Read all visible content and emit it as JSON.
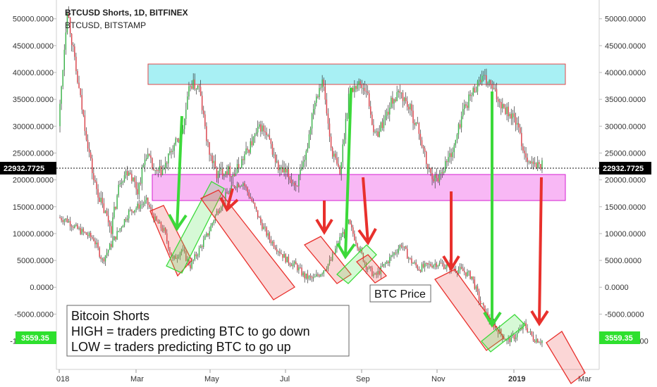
{
  "header": {
    "title": "BTCUSD Shorts, 1D, BITFINEX",
    "subtitle": "BTCUSD, BITSTAMP"
  },
  "colors": {
    "up": "#3bb34a",
    "down": "#d9434b",
    "resistance_zone": "#a8f0f4",
    "support_zone": "#f8b8f5",
    "arrow_red": "#e8302c",
    "arrow_green": "#3cd93a",
    "current_tag": "#000000",
    "shorts_tag": "#2ee02e"
  },
  "chart_data": {
    "type": "candlestick",
    "title": "BTCUSD Shorts, 1D, BITFINEX",
    "series": [
      {
        "name": "BTCUSD Shorts, 1D, BITFINEX"
      },
      {
        "name": "BTCUSD, BITSTAMP"
      }
    ],
    "y_ticks": [
      50000,
      45000,
      40000,
      35000,
      30000,
      25000,
      20000,
      15000,
      10000,
      5000,
      0,
      -5000,
      -10000
    ],
    "y_tick_labels": [
      "50000.0000",
      "45000.0000",
      "40000.0000",
      "35000.0000",
      "30000.0000",
      "25000.0000",
      "20000.0000",
      "15000.0000",
      "10000.0000",
      "5000.0000",
      "0.0000",
      "-5000.0000",
      "-10000.0000"
    ],
    "ylim": [
      -15300,
      53500
    ],
    "x_ticks": [
      "018",
      "Mar",
      "May",
      "Jul",
      "Sep",
      "Nov",
      "2019",
      "Mar"
    ],
    "current_value_label": "22932.7725",
    "current_value": 22932.7725,
    "shorts_value_label": "3559.35",
    "shorts_value_plotted": -9800,
    "price_path": [
      [
        0,
        30000
      ],
      [
        1,
        52000
      ],
      [
        2,
        40000
      ],
      [
        3,
        30000
      ],
      [
        4,
        20000
      ],
      [
        5,
        15000
      ],
      [
        6,
        11000
      ],
      [
        7,
        20000
      ],
      [
        8,
        22000
      ],
      [
        9,
        18000
      ],
      [
        10,
        25000
      ],
      [
        11,
        21000
      ],
      [
        12,
        22000
      ],
      [
        13,
        26000
      ],
      [
        14,
        28000
      ],
      [
        15,
        38000
      ],
      [
        16,
        37000
      ],
      [
        17,
        26000
      ],
      [
        18,
        21000
      ],
      [
        19,
        22000
      ],
      [
        20,
        21000
      ],
      [
        21,
        24000
      ],
      [
        22,
        27000
      ],
      [
        23,
        30000
      ],
      [
        24,
        27000
      ],
      [
        25,
        22000
      ],
      [
        26,
        21000
      ],
      [
        27,
        19000
      ],
      [
        28,
        23000
      ],
      [
        29,
        34000
      ],
      [
        30,
        39000
      ],
      [
        31,
        26000
      ],
      [
        32,
        21000
      ],
      [
        33,
        36000
      ],
      [
        34,
        38000
      ],
      [
        35,
        37000
      ],
      [
        36,
        28000
      ],
      [
        37,
        31000
      ],
      [
        38,
        35000
      ],
      [
        39,
        36000
      ],
      [
        40,
        33000
      ],
      [
        41,
        29000
      ],
      [
        42,
        22000
      ],
      [
        43,
        20000
      ],
      [
        44,
        23000
      ],
      [
        45,
        26000
      ],
      [
        46,
        33000
      ],
      [
        47,
        36000
      ],
      [
        48,
        39000
      ],
      [
        49,
        38000
      ],
      [
        50,
        35000
      ],
      [
        51,
        33000
      ],
      [
        52,
        31000
      ],
      [
        53,
        25000
      ],
      [
        54,
        22500
      ],
      [
        55,
        22900
      ]
    ],
    "shorts_path": [
      [
        0,
        13000
      ],
      [
        1,
        12500
      ],
      [
        2,
        11000
      ],
      [
        3,
        10000
      ],
      [
        4,
        9000
      ],
      [
        5,
        5000
      ],
      [
        6,
        8000
      ],
      [
        7,
        11000
      ],
      [
        8,
        14000
      ],
      [
        9,
        15000
      ],
      [
        10,
        16000
      ],
      [
        11,
        12500
      ],
      [
        12,
        10500
      ],
      [
        13,
        5000
      ],
      [
        14,
        7000
      ],
      [
        15,
        4000
      ],
      [
        16,
        7000
      ],
      [
        17,
        10000
      ],
      [
        18,
        14000
      ],
      [
        19,
        17000
      ],
      [
        20,
        19000
      ],
      [
        21,
        19500
      ],
      [
        22,
        16000
      ],
      [
        23,
        12000
      ],
      [
        24,
        9000
      ],
      [
        25,
        7000
      ],
      [
        26,
        5000
      ],
      [
        27,
        4000
      ],
      [
        28,
        2000
      ],
      [
        29,
        1500
      ],
      [
        30,
        3000
      ],
      [
        31,
        5000
      ],
      [
        32,
        9000
      ],
      [
        33,
        12000
      ],
      [
        34,
        8000
      ],
      [
        35,
        4000
      ],
      [
        36,
        2000
      ],
      [
        37,
        4000
      ],
      [
        38,
        6000
      ],
      [
        39,
        8000
      ],
      [
        40,
        5000
      ],
      [
        41,
        3500
      ],
      [
        42,
        4000
      ],
      [
        43,
        4500
      ],
      [
        44,
        4000
      ],
      [
        45,
        3500
      ],
      [
        46,
        3000
      ],
      [
        47,
        2000
      ],
      [
        48,
        -3000
      ],
      [
        49,
        -6000
      ],
      [
        50,
        -8000
      ],
      [
        51,
        -10000
      ],
      [
        52,
        -9000
      ],
      [
        53,
        -7000
      ],
      [
        54,
        -9500
      ],
      [
        55,
        -10000
      ]
    ]
  },
  "annotations": {
    "price_label": "BTC Price",
    "legend_title": "Bitcoin Shorts",
    "legend_high": "HIGH = traders predicting BTC to go down",
    "legend_low": "LOW = traders predicting BTC to go up"
  }
}
